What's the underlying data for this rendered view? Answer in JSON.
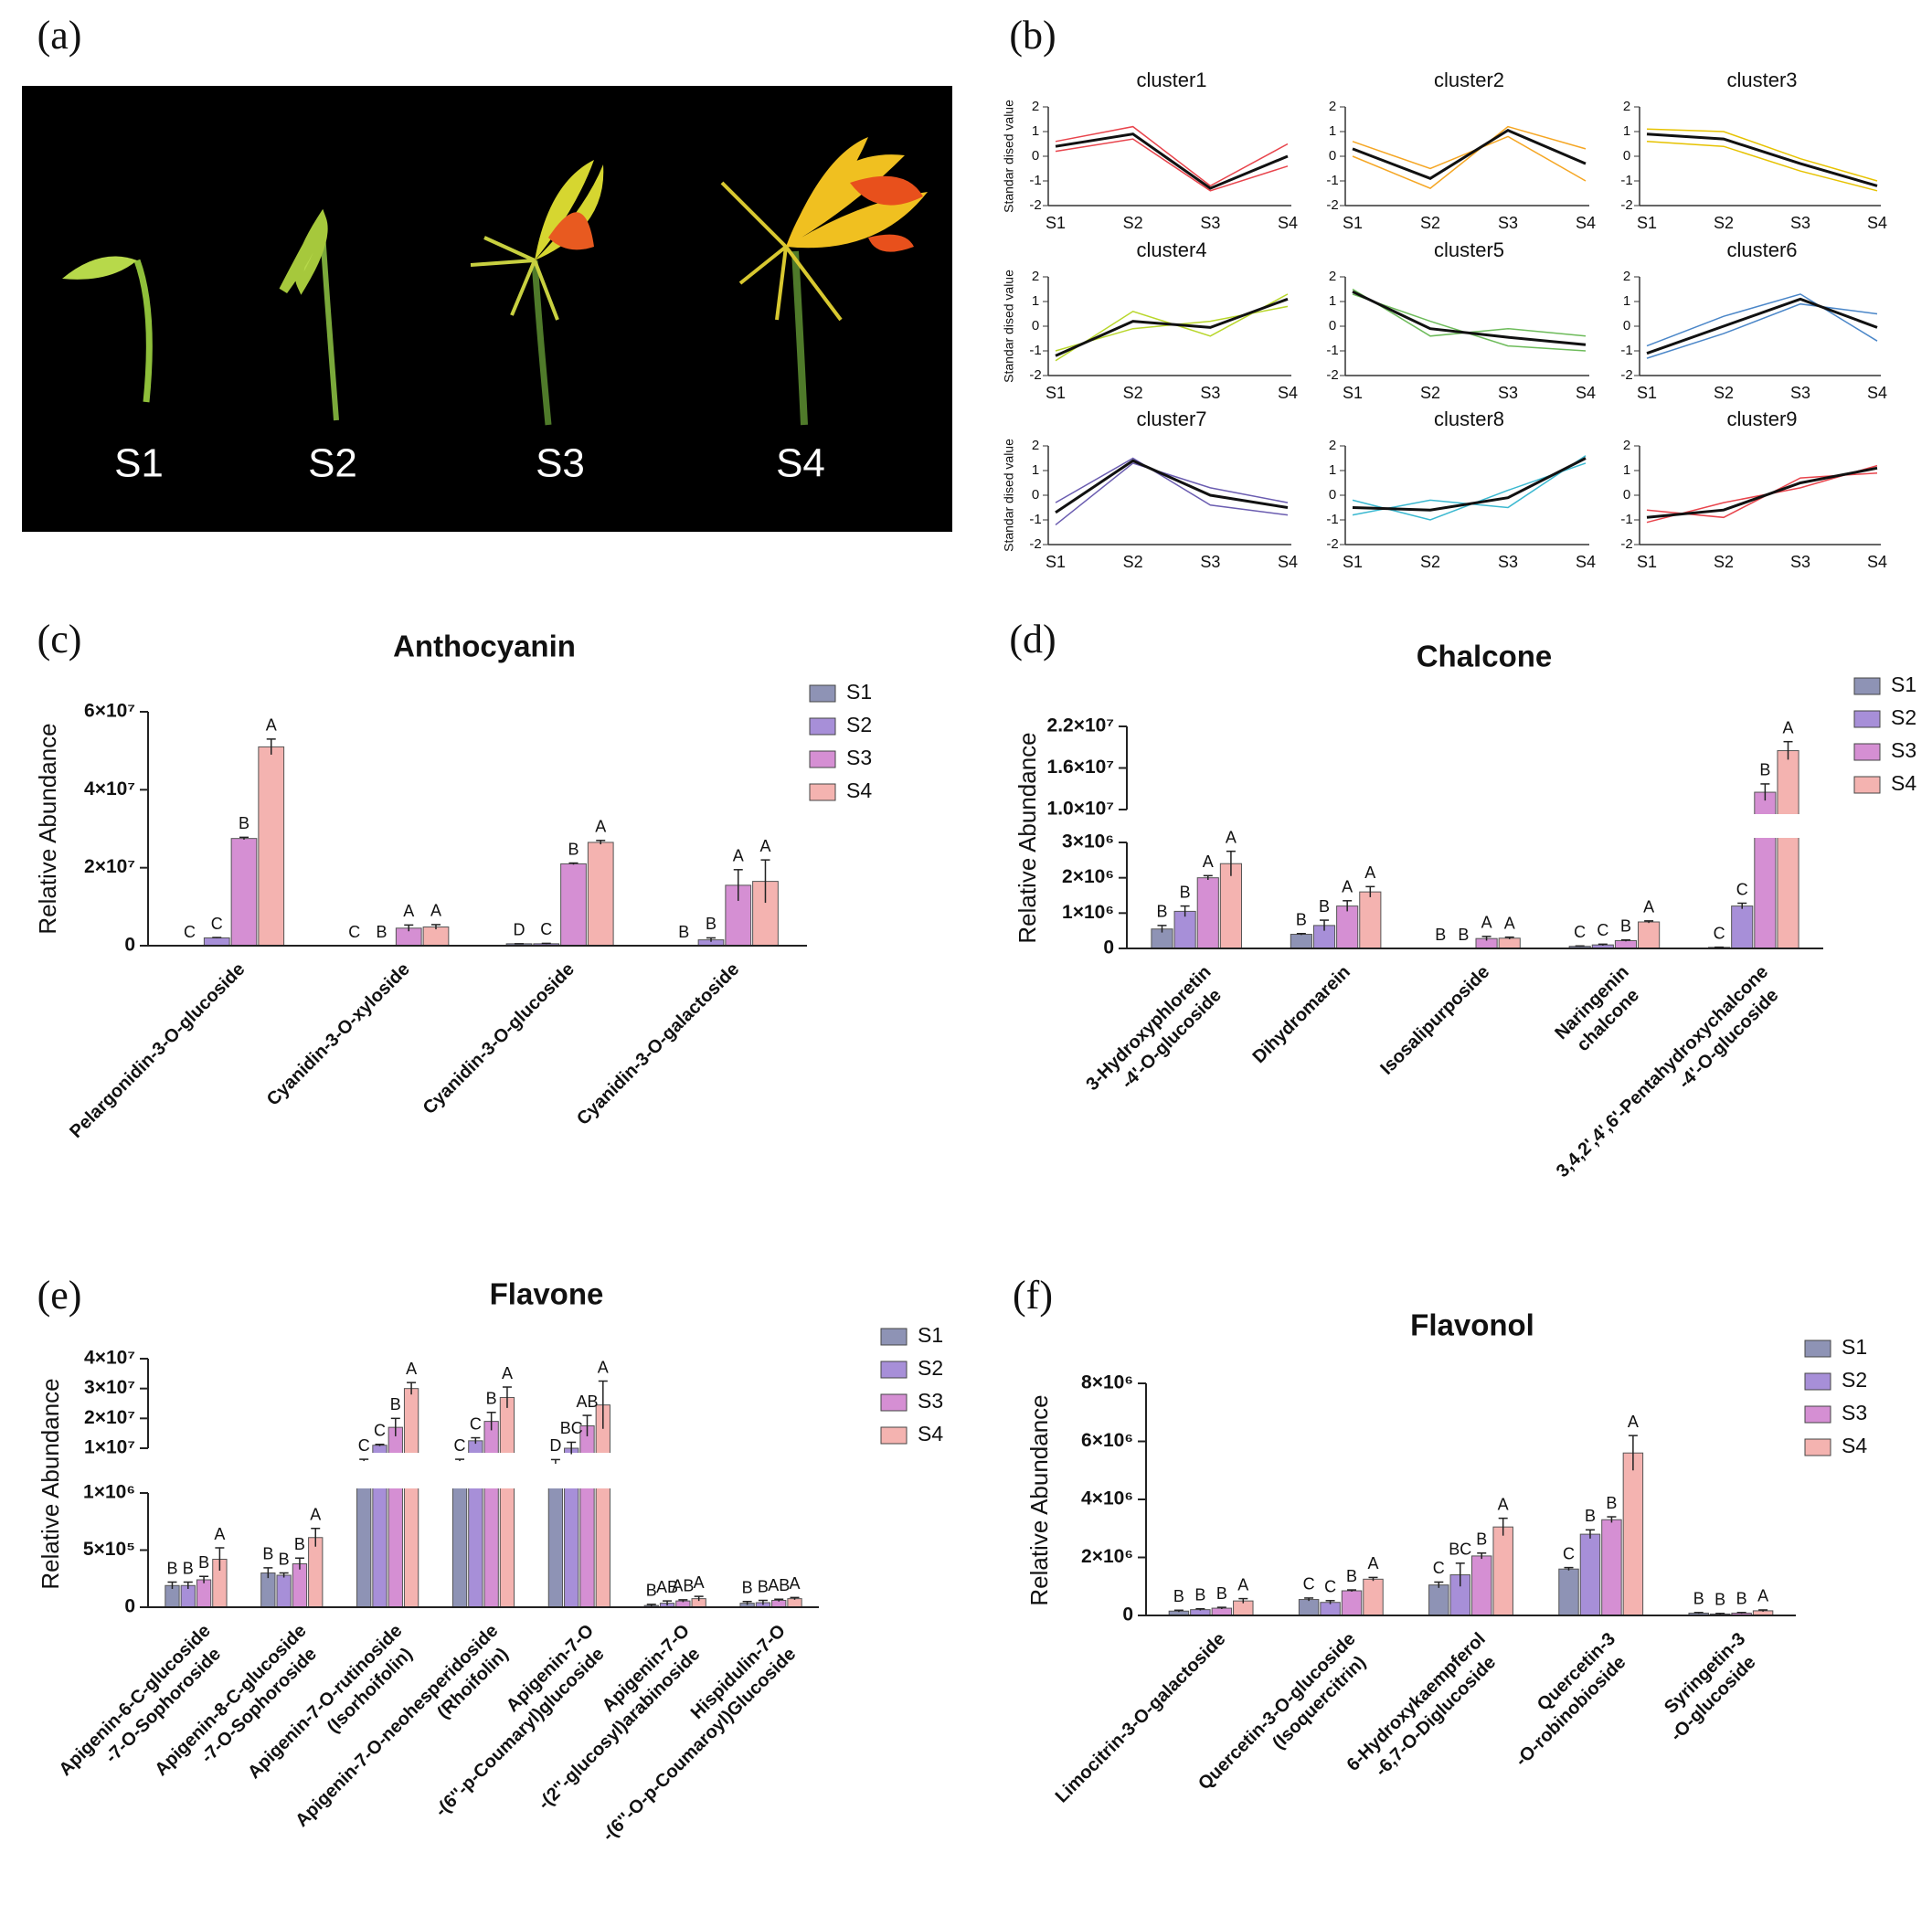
{
  "panel_labels": [
    "(a)",
    "(b)",
    "(c)",
    "(d)",
    "(e)",
    "(f)"
  ],
  "photo": {
    "stages": [
      "S1",
      "S2",
      "S3",
      "S4"
    ]
  },
  "chart_data": [
    {
      "type": "small-multiples",
      "ylabel": "Standar dised value",
      "categories": [
        "S1",
        "S2",
        "S3",
        "S4"
      ],
      "ylim": [
        -2,
        2
      ],
      "yticks": [
        -2,
        -1,
        0,
        1,
        2
      ],
      "panels": [
        {
          "title": "cluster1",
          "color": "#e8444c",
          "values": [
            0.4,
            0.9,
            -1.3,
            0.0
          ],
          "members": [
            [
              0.6,
              1.2,
              -1.2,
              0.5
            ],
            [
              0.2,
              0.7,
              -1.4,
              -0.4
            ]
          ]
        },
        {
          "title": "cluster2",
          "color": "#f5a623",
          "values": [
            0.3,
            -0.9,
            1.05,
            -0.3
          ],
          "members": [
            [
              0.0,
              -1.3,
              1.2,
              0.3
            ],
            [
              0.6,
              -0.5,
              0.8,
              -1.0
            ]
          ]
        },
        {
          "title": "cluster3",
          "color": "#e6c200",
          "values": [
            0.9,
            0.7,
            -0.3,
            -1.2
          ],
          "members": [
            [
              1.1,
              1.0,
              -0.1,
              -1.0
            ],
            [
              0.6,
              0.4,
              -0.6,
              -1.4
            ]
          ]
        },
        {
          "title": "cluster4",
          "color": "#b8d62a",
          "values": [
            -1.2,
            0.2,
            -0.05,
            1.1
          ],
          "members": [
            [
              -1.4,
              0.6,
              -0.4,
              1.3
            ],
            [
              -1.0,
              -0.1,
              0.2,
              0.8
            ]
          ]
        },
        {
          "title": "cluster5",
          "color": "#6dbb5a",
          "values": [
            1.4,
            -0.1,
            -0.45,
            -0.75
          ],
          "members": [
            [
              1.3,
              0.2,
              -0.8,
              -1.0
            ],
            [
              1.5,
              -0.4,
              -0.1,
              -0.4
            ]
          ]
        },
        {
          "title": "cluster6",
          "color": "#4a86c8",
          "values": [
            -1.1,
            0.0,
            1.1,
            -0.05
          ],
          "members": [
            [
              -0.8,
              0.4,
              1.3,
              -0.6
            ],
            [
              -1.3,
              -0.3,
              0.9,
              0.5
            ]
          ]
        },
        {
          "title": "cluster7",
          "color": "#6a5cb0",
          "values": [
            -0.7,
            1.4,
            0.0,
            -0.5
          ],
          "members": [
            [
              -1.2,
              1.3,
              0.3,
              -0.3
            ],
            [
              -0.3,
              1.5,
              -0.4,
              -0.8
            ]
          ]
        },
        {
          "title": "cluster8",
          "color": "#3ab8d0",
          "values": [
            -0.5,
            -0.6,
            -0.1,
            1.5
          ],
          "members": [
            [
              -0.2,
              -1.0,
              0.2,
              1.3
            ],
            [
              -0.8,
              -0.2,
              -0.5,
              1.6
            ]
          ]
        },
        {
          "title": "cluster9",
          "color": "#e8444c",
          "values": [
            -0.9,
            -0.6,
            0.5,
            1.1
          ],
          "members": [
            [
              -1.1,
              -0.3,
              0.3,
              1.2
            ],
            [
              -0.6,
              -0.9,
              0.7,
              0.9
            ]
          ]
        }
      ]
    },
    {
      "type": "bar",
      "title": "Anthocyanin",
      "ylabel": "Relative Abundance",
      "categories": [
        [
          "Pelargonidin-3-O-glucoside"
        ],
        [
          "Cyanidin-3-O-xyloside"
        ],
        [
          "Cyanidin-3-O-glucoside"
        ],
        [
          "Cyanidin-3-O-galactoside"
        ]
      ],
      "ylim": [
        0,
        60000000
      ],
      "yticks": [
        0,
        {
          "value": 20000000,
          "label": "2×10⁷"
        },
        {
          "value": 40000000,
          "label": "4×10⁷"
        },
        {
          "value": 60000000,
          "label": "6×10⁷"
        }
      ],
      "series": [
        {
          "name": "S1",
          "color": "#8e93b5",
          "values": [
            0,
            0,
            500000,
            0
          ],
          "errors": [
            0,
            0,
            0,
            0
          ],
          "letters": [
            "C",
            "C",
            "D",
            "B"
          ]
        },
        {
          "name": "S2",
          "color": "#a78fd8",
          "values": [
            2000000,
            0,
            500000,
            1500000
          ],
          "errors": [
            100000,
            0,
            100000,
            500000
          ],
          "letters": [
            "C",
            "B",
            "C",
            "B"
          ]
        },
        {
          "name": "S3",
          "color": "#d58fd3",
          "values": [
            27500000,
            4500000,
            21000000,
            15500000
          ],
          "errors": [
            300000,
            800000,
            200000,
            4000000
          ],
          "letters": [
            "B",
            "A",
            "B",
            "A"
          ]
        },
        {
          "name": "S4",
          "color": "#f4b3b0",
          "values": [
            51000000,
            4800000,
            26500000,
            16500000
          ],
          "errors": [
            2000000,
            600000,
            500000,
            5500000
          ],
          "letters": [
            "A",
            "A",
            "A",
            "A"
          ]
        }
      ]
    },
    {
      "type": "bar",
      "title": "Chalcone",
      "ylabel": "Relative Abundance",
      "categories": [
        [
          "3-Hydroxyphloretin",
          "-4'-O-glucoside"
        ],
        [
          "Dihydromarein"
        ],
        [
          "Isosalipurposide"
        ],
        [
          "Naringenin",
          "chalcone"
        ],
        [
          "3,4,2',4',6'-Pentahydroxychalcone",
          "-4'-O-glucoside"
        ]
      ],
      "y_segments": [
        {
          "ylim": [
            0,
            3000000
          ],
          "yticks": [
            0,
            {
              "value": 1000000,
              "label": "1×10⁶"
            },
            {
              "value": 2000000,
              "label": "2×10⁶"
            },
            {
              "value": 3000000,
              "label": "3×10⁶"
            }
          ]
        },
        {
          "ylim": [
            10000000,
            22000000
          ],
          "yticks": [
            {
              "value": 10000000,
              "label": "1.0×10⁷"
            },
            {
              "value": 16000000,
              "label": "1.6×10⁷"
            },
            {
              "value": 22000000,
              "label": "2.2×10⁷"
            }
          ]
        }
      ],
      "series": [
        {
          "name": "S1",
          "color": "#8e93b5",
          "values": [
            550000,
            400000,
            0,
            60000,
            30000
          ],
          "errors": [
            100000,
            20000,
            0,
            10000,
            5000
          ],
          "letters": [
            "B",
            "B",
            "B",
            "C",
            "C"
          ]
        },
        {
          "name": "S2",
          "color": "#a78fd8",
          "values": [
            1050000,
            650000,
            0,
            100000,
            1200000
          ],
          "errors": [
            150000,
            150000,
            0,
            20000,
            80000
          ],
          "letters": [
            "B",
            "B",
            "B",
            "C",
            "C"
          ]
        },
        {
          "name": "S3",
          "color": "#d58fd3",
          "values": [
            2000000,
            1200000,
            280000,
            220000,
            12500000
          ],
          "errors": [
            60000,
            150000,
            60000,
            20000,
            1200000
          ],
          "letters": [
            "A",
            "A",
            "A",
            "B",
            "B"
          ]
        },
        {
          "name": "S4",
          "color": "#f4b3b0",
          "values": [
            2400000,
            1600000,
            290000,
            750000,
            18500000
          ],
          "errors": [
            350000,
            150000,
            30000,
            30000,
            1300000
          ],
          "letters": [
            "A",
            "A",
            "A",
            "A",
            "A"
          ]
        }
      ]
    },
    {
      "type": "bar",
      "title": "Flavone",
      "ylabel": "Relative Abundance",
      "categories": [
        [
          "Apigenin-6-C-glucoside",
          "-7-O-Sophoroside"
        ],
        [
          "Apigenin-8-C-glucoside",
          "-7-O-Sophoroside"
        ],
        [
          "Apigenin-7-O-rutinoside",
          "(Isorhoifolin)"
        ],
        [
          "Apigenin-7-O-neohesperidoside",
          "(Rhoifolin)"
        ],
        [
          "Apigenin-7-O",
          "-(6''-p-Coumaryl)glucoside"
        ],
        [
          "Apigenin-7-O",
          "-(2''-glucosyl)arabinoside"
        ],
        [
          "Hispidulin-7-O",
          "-(6''-O-p-Coumaroyl)Glucoside"
        ]
      ],
      "y_segments": [
        {
          "ylim": [
            0,
            1000000
          ],
          "yticks": [
            0,
            {
              "value": 500000,
              "label": "5×10⁵"
            },
            {
              "value": 1000000,
              "label": "1×10⁶"
            }
          ]
        },
        {
          "ylim": [
            10000000,
            40000000
          ],
          "yticks": [
            {
              "value": 10000000,
              "label": "1×10⁷"
            },
            {
              "value": 20000000,
              "label": "2×10⁷"
            },
            {
              "value": 30000000,
              "label": "3×10⁷"
            },
            {
              "value": 40000000,
              "label": "4×10⁷"
            }
          ]
        }
      ],
      "series": [
        {
          "name": "S1",
          "color": "#8e93b5",
          "values": [
            190000,
            300000,
            6000000,
            6000000,
            5500000,
            15000,
            35000
          ],
          "errors": [
            30000,
            45000,
            300000,
            300000,
            700000,
            10000,
            15000
          ],
          "letters": [
            "B",
            "B",
            "C",
            "C",
            "D",
            "B",
            "B"
          ]
        },
        {
          "name": "S2",
          "color": "#a78fd8",
          "values": [
            190000,
            280000,
            11000000,
            12500000,
            10000000,
            35000,
            40000
          ],
          "errors": [
            30000,
            20000,
            300000,
            1000000,
            2000000,
            20000,
            20000
          ],
          "letters": [
            "B",
            "B",
            "C",
            "C",
            "BC",
            "AB",
            "B"
          ]
        },
        {
          "name": "S3",
          "color": "#d58fd3",
          "values": [
            240000,
            380000,
            17000000,
            19000000,
            17500000,
            55000,
            60000
          ],
          "errors": [
            30000,
            50000,
            3000000,
            3000000,
            3500000,
            10000,
            10000
          ],
          "letters": [
            "B",
            "B",
            "B",
            "B",
            "AB",
            "AB",
            "AB"
          ]
        },
        {
          "name": "S4",
          "color": "#f4b3b0",
          "values": [
            420000,
            610000,
            30000000,
            27000000,
            24500000,
            75000,
            75000
          ],
          "errors": [
            100000,
            80000,
            2000000,
            3500000,
            8000000,
            20000,
            10000
          ],
          "letters": [
            "A",
            "A",
            "A",
            "A",
            "A",
            "A",
            "A"
          ]
        }
      ]
    },
    {
      "type": "bar",
      "title": "Flavonol",
      "ylabel": "Relative Abundance",
      "categories": [
        [
          "Limocitrin-3-O-galactoside"
        ],
        [
          "Quercetin-3-O-glucoside",
          "(Isoquercitrin)"
        ],
        [
          "6-Hydroxykaempferol",
          "-6,7-O-Diglucoside"
        ],
        [
          "Quercetin-3",
          "-O-robinobioside"
        ],
        [
          "Syringetin-3",
          "-O-glucoside"
        ]
      ],
      "ylim": [
        0,
        8000000
      ],
      "yticks": [
        0,
        {
          "value": 2000000,
          "label": "2×10⁶"
        },
        {
          "value": 4000000,
          "label": "4×10⁶"
        },
        {
          "value": 6000000,
          "label": "6×10⁶"
        },
        {
          "value": 8000000,
          "label": "8×10⁶"
        }
      ],
      "series": [
        {
          "name": "S1",
          "color": "#8e93b5",
          "values": [
            150000,
            550000,
            1050000,
            1600000,
            80000
          ],
          "errors": [
            30000,
            50000,
            100000,
            50000,
            20000
          ],
          "letters": [
            "B",
            "C",
            "C",
            "C",
            "B"
          ]
        },
        {
          "name": "S2",
          "color": "#a78fd8",
          "values": [
            200000,
            450000,
            1400000,
            2800000,
            50000
          ],
          "errors": [
            30000,
            60000,
            400000,
            150000,
            20000
          ],
          "letters": [
            "B",
            "C",
            "BC",
            "B",
            "B"
          ]
        },
        {
          "name": "S3",
          "color": "#d58fd3",
          "values": [
            250000,
            850000,
            2050000,
            3300000,
            80000
          ],
          "errors": [
            30000,
            30000,
            100000,
            100000,
            20000
          ],
          "letters": [
            "B",
            "B",
            "B",
            "B",
            "B"
          ]
        },
        {
          "name": "S4",
          "color": "#f4b3b0",
          "values": [
            500000,
            1250000,
            3050000,
            5600000,
            160000
          ],
          "errors": [
            80000,
            60000,
            300000,
            600000,
            30000
          ],
          "letters": [
            "A",
            "A",
            "A",
            "A",
            "A"
          ]
        }
      ]
    }
  ]
}
